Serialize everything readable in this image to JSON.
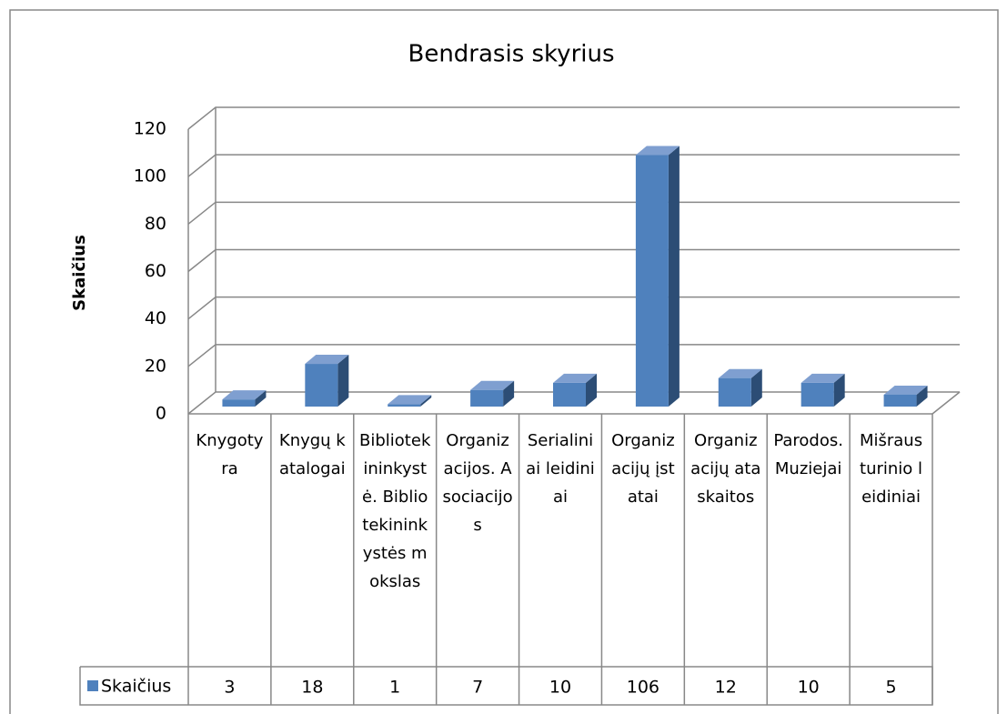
{
  "chart_data": {
    "type": "bar3d",
    "title": "Bendrasis skyrius",
    "y_label": "Skaičius",
    "categories": [
      "Knygotyra",
      "Knygų katalogai",
      "Bibliotekininkystė. Bibliotekininkystės mokslas",
      "Organizacijos. Asociacijos",
      "Serialiniai leidiniai",
      "Organizacijų įstatai",
      "Organizacijų ataskaitos",
      "Parodos. Muziejai",
      "Mišraus turinio leidiniai"
    ],
    "series": [
      {
        "name": "Skaičius",
        "color": "#4f81bd",
        "values": [
          3,
          18,
          1,
          7,
          10,
          106,
          12,
          10,
          5
        ]
      }
    ],
    "ylim": [
      0,
      120
    ],
    "yticks": [
      0,
      20,
      40,
      60,
      80,
      100,
      120
    ],
    "grid": true,
    "data_table": true
  }
}
